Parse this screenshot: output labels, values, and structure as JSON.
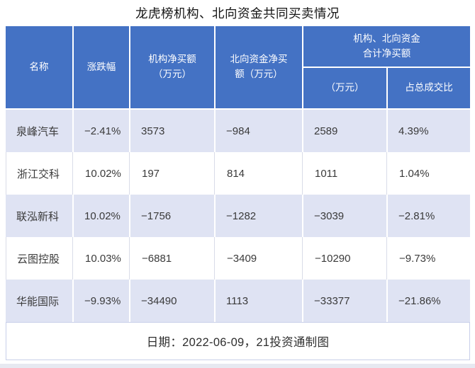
{
  "title": "龙虎榜机构、北向资金共同买卖情况",
  "header": {
    "name": "名称",
    "change": "涨跌幅",
    "inst": "机构净买额\n（万元）",
    "north": "北向资金净买\n额（万元）",
    "combo": "机构、北向资金\n合计净买额",
    "combo_amount": "（万元）",
    "combo_ratio": "占总成交比"
  },
  "rows": [
    [
      "泉峰汽车",
      "−2.41%",
      "3573",
      "−984",
      "2589",
      "4.39%"
    ],
    [
      "浙江交科",
      "10.02%",
      "197",
      "814",
      "1011",
      "1.04%"
    ],
    [
      "联泓新科",
      "10.02%",
      "−1756",
      "−1282",
      "−3039",
      "−2.81%"
    ],
    [
      "云图控股",
      "10.03%",
      "−6881",
      "−3409",
      "−10290",
      "−9.73%"
    ],
    [
      "华能国际",
      "−9.93%",
      "−34490",
      "1113",
      "−33377",
      "−21.86%"
    ]
  ],
  "footer": "日期：2022-06-09，21投资通制图",
  "colors": {
    "header_bg": "#4472c4",
    "header_text": "#ffffff",
    "band_bg": "#dfe3f3",
    "grid_line": "#d9dce8",
    "footer_border": "#c8cfe9",
    "body_text": "#3a3a3a"
  },
  "chart_data": {
    "type": "table",
    "title": "龙虎榜机构、北向资金共同买卖情况",
    "columns": [
      "名称",
      "涨跌幅",
      "机构净买额（万元）",
      "北向资金净买额（万元）",
      "机构、北向资金合计净买额（万元）",
      "机构、北向资金合计净买额占总成交比"
    ],
    "rows": [
      [
        "泉峰汽车",
        -2.41,
        3573,
        -984,
        2589,
        4.39
      ],
      [
        "浙江交科",
        10.02,
        197,
        814,
        1011,
        1.04
      ],
      [
        "联泓新科",
        10.02,
        -1756,
        -1282,
        -3039,
        -2.81
      ],
      [
        "云图控股",
        10.03,
        -6881,
        -3409,
        -10290,
        -9.73
      ],
      [
        "华能国际",
        -9.93,
        -34490,
        1113,
        -33377,
        -21.86
      ]
    ],
    "units": {
      "涨跌幅": "%",
      "净买额": "万元",
      "占总成交比": "%"
    },
    "note": "日期：2022-06-09，21投资通制图"
  }
}
